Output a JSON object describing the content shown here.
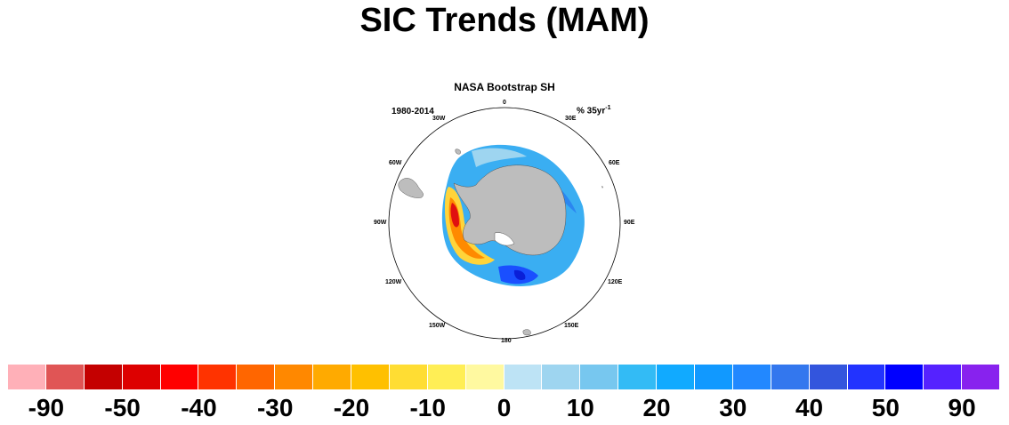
{
  "title": "SIC Trends (MAM)",
  "panel": {
    "title": "NASA Bootstrap SH",
    "period": "1980-2014",
    "units": "% 35yr",
    "units_exponent": "-1"
  },
  "longitude_labels": {
    "lon_0": "0",
    "lon_30e": "30E",
    "lon_60e": "60E",
    "lon_90e": "90E",
    "lon_120e": "120E",
    "lon_150e": "150E",
    "lon_180": "180",
    "lon_150w": "150W",
    "lon_120w": "120W",
    "lon_90w": "90W",
    "lon_60w": "60W",
    "lon_30w": "30W"
  },
  "colorbar": {
    "colors": [
      "#ffb0b8",
      "#e05555",
      "#c40000",
      "#dd0000",
      "#ff0000",
      "#ff3300",
      "#ff6600",
      "#ff8800",
      "#ffaa00",
      "#ffc000",
      "#ffdd33",
      "#ffee55",
      "#fff9a0",
      "#bde3f5",
      "#9ed5f0",
      "#77c7ef",
      "#33bbf5",
      "#11aaff",
      "#1199ff",
      "#2288ff",
      "#3377ee",
      "#3355dd",
      "#2233ff",
      "#0000ff",
      "#5522ff",
      "#8822ee"
    ],
    "labels": [
      "-90",
      "-50",
      "-40",
      "-30",
      "-20",
      "-10",
      "0",
      "10",
      "20",
      "30",
      "40",
      "50",
      "90"
    ]
  },
  "colors": {
    "land": "#bdbdbd",
    "map_outline": "#000000"
  }
}
